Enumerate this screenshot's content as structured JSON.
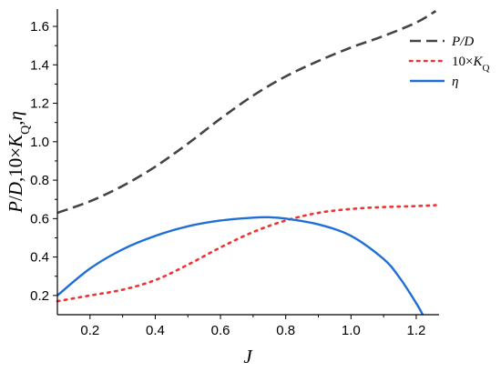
{
  "chart_data": {
    "type": "line",
    "xlabel": "J",
    "ylabel": "P/D,10×K_Q,η",
    "xlim": [
      0.1,
      1.27
    ],
    "ylim": [
      0.1,
      1.69
    ],
    "xticks": [
      0.2,
      0.4,
      0.6,
      0.8,
      1.0,
      1.2
    ],
    "xtick_labels": [
      "0.2",
      "0.4",
      "0.6",
      "0.8",
      "1.0",
      "1.2"
    ],
    "yticks": [
      0.2,
      0.4,
      0.6,
      0.8,
      1.0,
      1.2,
      1.4,
      1.6
    ],
    "ytick_labels": [
      "0.2",
      "0.4",
      "0.6",
      "0.8",
      "1.0",
      "1.2",
      "1.4",
      "1.6"
    ],
    "legend_position": "top-right",
    "series": [
      {
        "name": "P/D",
        "legend_parts": [
          "P/D"
        ],
        "color": "#444444",
        "style": "dashed",
        "x": [
          0.1,
          0.2,
          0.3,
          0.4,
          0.5,
          0.6,
          0.7,
          0.8,
          0.9,
          1.0,
          1.1,
          1.2,
          1.26
        ],
        "y": [
          0.63,
          0.69,
          0.77,
          0.87,
          0.99,
          1.12,
          1.24,
          1.34,
          1.42,
          1.49,
          1.55,
          1.62,
          1.68
        ]
      },
      {
        "name": "10×K_Q",
        "legend_parts": [
          "10×",
          "K",
          "Q"
        ],
        "color": "#ee3333",
        "style": "dotted",
        "x": [
          0.1,
          0.2,
          0.3,
          0.4,
          0.5,
          0.6,
          0.7,
          0.8,
          0.9,
          1.0,
          1.1,
          1.2,
          1.26
        ],
        "y": [
          0.17,
          0.2,
          0.23,
          0.28,
          0.36,
          0.45,
          0.53,
          0.59,
          0.63,
          0.65,
          0.66,
          0.665,
          0.67
        ]
      },
      {
        "name": "η",
        "legend_parts": [
          "η"
        ],
        "color": "#1f6fd6",
        "style": "solid",
        "x": [
          0.1,
          0.2,
          0.3,
          0.4,
          0.5,
          0.6,
          0.7,
          0.75,
          0.8,
          0.9,
          1.0,
          1.1,
          1.15,
          1.2,
          1.22
        ],
        "y": [
          0.2,
          0.34,
          0.44,
          0.51,
          0.56,
          0.59,
          0.605,
          0.607,
          0.6,
          0.57,
          0.51,
          0.39,
          0.29,
          0.16,
          0.1
        ]
      }
    ]
  }
}
